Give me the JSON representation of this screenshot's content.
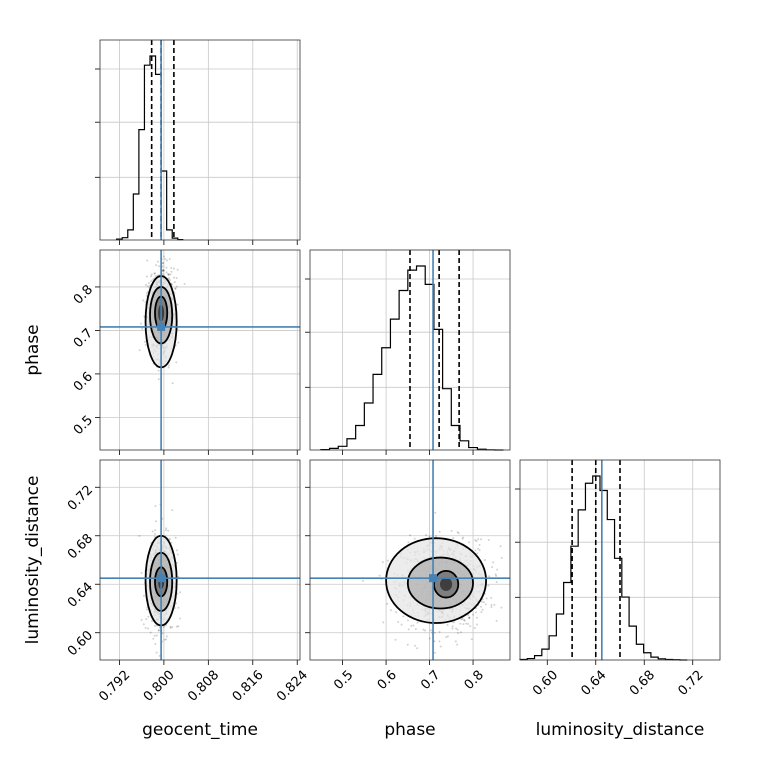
{
  "chart_data": {
    "type": "corner",
    "parameters": [
      {
        "name": "geocent_time",
        "range": [
          0.7885,
          0.8245
        ],
        "ticks": [
          0.792,
          0.8,
          0.808,
          0.816,
          0.824
        ],
        "tick_labels": [
          "0.792",
          "0.800",
          "0.808",
          "0.816",
          "0.824"
        ],
        "truth": 0.7995,
        "quantiles": [
          0.7978,
          0.7995,
          0.8018
        ],
        "hist_edges": [
          0.7905,
          0.7915,
          0.7925,
          0.7935,
          0.7945,
          0.7955,
          0.7965,
          0.7975,
          0.7985,
          0.7995,
          0.8005,
          0.8015,
          0.8025,
          0.8035,
          0.8045,
          0.8055,
          0.8065
        ],
        "hist_counts": [
          2,
          5,
          22,
          100,
          240,
          380,
          400,
          360,
          150,
          22,
          4,
          1
        ],
        "hist_start_index": 1
      },
      {
        "name": "phase",
        "range": [
          0.425,
          0.885
        ],
        "ticks": [
          0.5,
          0.6,
          0.7,
          0.8
        ],
        "tick_labels": [
          "0.5",
          "0.6",
          "0.7",
          "0.8"
        ],
        "truth": 0.708,
        "quantiles": [
          0.655,
          0.722,
          0.768
        ],
        "hist_edges": [
          0.45,
          0.47,
          0.49,
          0.51,
          0.53,
          0.55,
          0.57,
          0.59,
          0.61,
          0.63,
          0.65,
          0.67,
          0.69,
          0.71,
          0.73,
          0.75,
          0.77,
          0.79,
          0.81,
          0.83,
          0.85,
          0.87
        ],
        "hist_counts": [
          2,
          8,
          18,
          55,
          120,
          230,
          370,
          500,
          640,
          780,
          880,
          900,
          810,
          590,
          300,
          120,
          45,
          12,
          4,
          1,
          0
        ]
      },
      {
        "name": "luminosity_distance",
        "range": [
          0.5775,
          0.7425
        ],
        "ticks": [
          0.6,
          0.64,
          0.68,
          0.72
        ],
        "tick_labels": [
          "0.60",
          "0.64",
          "0.68",
          "0.72"
        ],
        "truth": 0.645,
        "quantiles": [
          0.6205,
          0.64,
          0.66
        ],
        "hist_edges": [
          0.5775,
          0.5835,
          0.5895,
          0.5955,
          0.6015,
          0.6075,
          0.6135,
          0.6195,
          0.6255,
          0.6315,
          0.6375,
          0.6435,
          0.6495,
          0.6555,
          0.6615,
          0.6675,
          0.6735,
          0.6795,
          0.6855,
          0.6915,
          0.6975,
          0.7035,
          0.7095,
          0.7155
        ],
        "hist_counts": [
          2,
          6,
          18,
          45,
          100,
          190,
          320,
          470,
          620,
          730,
          760,
          700,
          580,
          420,
          260,
          140,
          65,
          30,
          12,
          5,
          2,
          1,
          0
        ]
      }
    ],
    "pairs": [
      {
        "x_param": "geocent_time",
        "y_param": "phase",
        "truth": [
          0.7995,
          0.708
        ],
        "peak": [
          0.7995,
          0.745
        ],
        "spread": [
          0.0012,
          0.05
        ],
        "contours": [
          {
            "level": 0.5,
            "cx": 0.7995,
            "cy": 0.74,
            "rx": 0.0011,
            "ry": 0.038
          },
          {
            "level": 1.0,
            "cx": 0.7995,
            "cy": 0.735,
            "rx": 0.002,
            "ry": 0.065
          },
          {
            "level": 1.5,
            "cx": 0.7995,
            "cy": 0.72,
            "rx": 0.0028,
            "ry": 0.105
          }
        ]
      },
      {
        "x_param": "geocent_time",
        "y_param": "luminosity_distance",
        "truth": [
          0.7995,
          0.645
        ],
        "peak": [
          0.7995,
          0.642
        ],
        "spread": [
          0.0012,
          0.018
        ],
        "contours": [
          {
            "level": 0.5,
            "cx": 0.7995,
            "cy": 0.642,
            "rx": 0.0011,
            "ry": 0.012
          },
          {
            "level": 1.0,
            "cx": 0.7995,
            "cy": 0.642,
            "rx": 0.002,
            "ry": 0.024
          },
          {
            "level": 1.5,
            "cx": 0.7995,
            "cy": 0.643,
            "rx": 0.0028,
            "ry": 0.037
          }
        ]
      },
      {
        "x_param": "phase",
        "y_param": "luminosity_distance",
        "truth": [
          0.708,
          0.645
        ],
        "peak": [
          0.735,
          0.64
        ],
        "spread": [
          0.05,
          0.018
        ],
        "contours": [
          {
            "level": 0.5,
            "cx": 0.738,
            "cy": 0.64,
            "rx": 0.028,
            "ry": 0.011
          },
          {
            "level": 1.0,
            "cx": 0.725,
            "cy": 0.641,
            "rx": 0.075,
            "ry": 0.021
          },
          {
            "level": 1.5,
            "cx": 0.715,
            "cy": 0.643,
            "rx": 0.115,
            "ry": 0.035
          }
        ]
      }
    ],
    "colors": {
      "truth": "#4682b4",
      "contour": "#000000",
      "histogram": "#000000",
      "grid": "#c8c8c8"
    },
    "grid": true
  }
}
